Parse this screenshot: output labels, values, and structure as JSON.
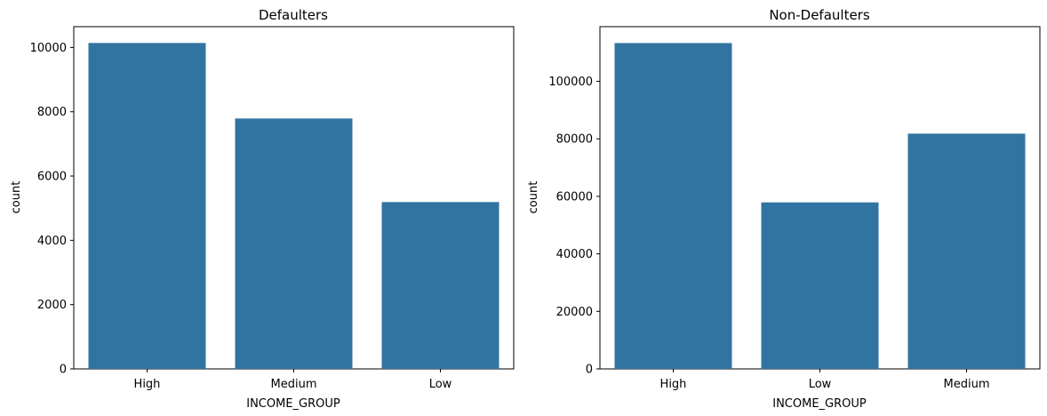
{
  "chart_data": [
    {
      "type": "bar",
      "title": "Defaulters",
      "xlabel": "INCOME_GROUP",
      "ylabel": "count",
      "categories": [
        "High",
        "Medium",
        "Low"
      ],
      "values": [
        10140,
        7790,
        5190
      ],
      "ylim": [
        0,
        10647
      ],
      "yticks": [
        0,
        2000,
        4000,
        6000,
        8000,
        10000
      ],
      "bar_color": "#3274a1",
      "grid": false,
      "legend": "none"
    },
    {
      "type": "bar",
      "title": "Non-Defaulters",
      "xlabel": "INCOME_GROUP",
      "ylabel": "count",
      "categories": [
        "High",
        "Low",
        "Medium"
      ],
      "values": [
        113300,
        57900,
        81800
      ],
      "ylim": [
        0,
        119000
      ],
      "yticks": [
        0,
        20000,
        40000,
        60000,
        80000,
        100000
      ],
      "bar_color": "#3274a1",
      "grid": false,
      "legend": "none"
    }
  ]
}
